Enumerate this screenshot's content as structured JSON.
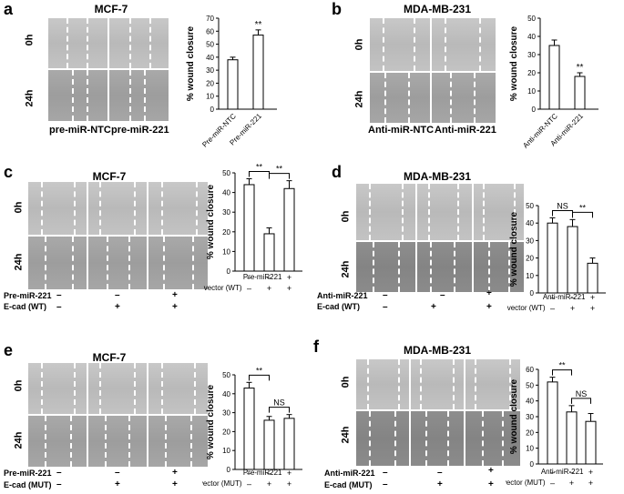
{
  "panels": {
    "a": {
      "label": "a",
      "title": "MCF-7",
      "row_top": "0h",
      "row_bot": "24h",
      "img_labels": [
        "pre-miR-NTC",
        "pre-miR-221"
      ]
    },
    "b": {
      "label": "b",
      "title": "MDA-MB-231",
      "row_top": "0h",
      "row_bot": "24h",
      "img_labels": [
        "Anti-miR-NTC",
        "Anti-miR-221"
      ]
    },
    "c": {
      "label": "c",
      "title": "MCF-7",
      "row_top": "0h",
      "row_bot": "24h",
      "cond1": "Pre-miR-221",
      "cond2": "E-cad (WT)",
      "signs1": [
        "–",
        "–",
        "+"
      ],
      "signs2": [
        "–",
        "+",
        "+"
      ]
    },
    "d": {
      "label": "d",
      "title": "MDA-MB-231",
      "row_top": "0h",
      "row_bot": "24h",
      "cond1": "Anti-miR-221",
      "cond2": "E-cad (WT)",
      "signs1": [
        "–",
        "–",
        "+"
      ],
      "signs2": [
        "–",
        "+",
        "+"
      ]
    },
    "e": {
      "label": "e",
      "title": "MCF-7",
      "row_top": "0h",
      "row_bot": "24h",
      "cond1": "Pre-miR-221",
      "cond2": "E-cad (MUT)",
      "signs1": [
        "–",
        "–",
        "+"
      ],
      "signs2": [
        "–",
        "+",
        "+"
      ]
    },
    "f": {
      "label": "f",
      "title": "MDA-MB-231",
      "row_top": "0h",
      "row_bot": "24h",
      "cond1": "Anti-miR-221",
      "cond2": "E-cad (MUT)",
      "signs1": [
        "–",
        "–",
        "+"
      ],
      "signs2": [
        "–",
        "+",
        "+"
      ]
    }
  },
  "chart_data": [
    {
      "id": "a",
      "type": "bar",
      "ylabel": "% wound closure",
      "ylim": [
        0,
        70
      ],
      "yticks": [
        0,
        10,
        20,
        30,
        40,
        50,
        60,
        70
      ],
      "categories": [
        "Pre-miR-NTC",
        "Pre-miR-221"
      ],
      "values": [
        38,
        57
      ],
      "errors": [
        2,
        4
      ],
      "annotations": [
        {
          "bar": 1,
          "text": "**"
        }
      ],
      "brackets": []
    },
    {
      "id": "b",
      "type": "bar",
      "ylabel": "% wound closure",
      "ylim": [
        0,
        50
      ],
      "yticks": [
        0,
        10,
        20,
        30,
        40,
        50
      ],
      "categories": [
        "Anti-miR-NTC",
        "Anti-miR-221"
      ],
      "values": [
        35,
        18
      ],
      "errors": [
        3,
        2
      ],
      "annotations": [
        {
          "bar": 1,
          "text": "**"
        }
      ],
      "brackets": []
    },
    {
      "id": "c",
      "type": "bar",
      "ylabel": "% wound closure",
      "ylim": [
        0,
        50
      ],
      "yticks": [
        0,
        10,
        20,
        30,
        40,
        50
      ],
      "categories": [
        "1",
        "2",
        "3"
      ],
      "values": [
        44,
        19,
        42
      ],
      "errors": [
        3,
        3,
        4
      ],
      "row1_label": "Pre-miR221",
      "row1": [
        "–",
        "–",
        "+"
      ],
      "row2_label": "E-cad vector (WT)",
      "row2": [
        "–",
        "+",
        "+"
      ],
      "annotations": [],
      "brackets": [
        {
          "from": 0,
          "to": 1,
          "text": "**"
        },
        {
          "from": 1,
          "to": 2,
          "text": "**"
        }
      ]
    },
    {
      "id": "d",
      "type": "bar",
      "ylabel": "% wound closure",
      "ylim": [
        0,
        50
      ],
      "yticks": [
        0,
        10,
        20,
        30,
        40,
        50
      ],
      "categories": [
        "1",
        "2",
        "3"
      ],
      "values": [
        40,
        38,
        17
      ],
      "errors": [
        3,
        4,
        3
      ],
      "row1_label": "Anti-miR-221",
      "row1": [
        "–",
        "–",
        "+"
      ],
      "row2_label": "E-cad vector (WT)",
      "row2": [
        "–",
        "+",
        "+"
      ],
      "annotations": [],
      "brackets": [
        {
          "from": 0,
          "to": 1,
          "text": "NS"
        },
        {
          "from": 1,
          "to": 2,
          "text": "**"
        }
      ]
    },
    {
      "id": "e",
      "type": "bar",
      "ylabel": "% wound closure",
      "ylim": [
        0,
        50
      ],
      "yticks": [
        0,
        10,
        20,
        30,
        40,
        50
      ],
      "categories": [
        "1",
        "2",
        "3"
      ],
      "values": [
        43,
        26,
        27
      ],
      "errors": [
        3,
        2,
        2
      ],
      "row1_label": "Pre-miR221",
      "row1": [
        "–",
        "–",
        "+"
      ],
      "row2_label": "E-cad vector (MUT)",
      "row2": [
        "–",
        "+",
        "+"
      ],
      "annotations": [],
      "brackets": [
        {
          "from": 0,
          "to": 1,
          "text": "**"
        },
        {
          "from": 1,
          "to": 2,
          "text": "NS"
        }
      ]
    },
    {
      "id": "f",
      "type": "bar",
      "ylabel": "% wound closure",
      "ylim": [
        0,
        60
      ],
      "yticks": [
        0,
        10,
        20,
        30,
        40,
        50,
        60
      ],
      "categories": [
        "1",
        "2",
        "3"
      ],
      "values": [
        52,
        33,
        27
      ],
      "errors": [
        3,
        4,
        5
      ],
      "row1_label": "Anti-miR-221",
      "row1": [
        "–",
        "–",
        "+"
      ],
      "row2_label": "E-cad vector (MUT)",
      "row2": [
        "–",
        "+",
        "+"
      ],
      "annotations": [],
      "brackets": [
        {
          "from": 0,
          "to": 1,
          "text": "**"
        },
        {
          "from": 1,
          "to": 2,
          "text": "NS"
        }
      ]
    }
  ]
}
